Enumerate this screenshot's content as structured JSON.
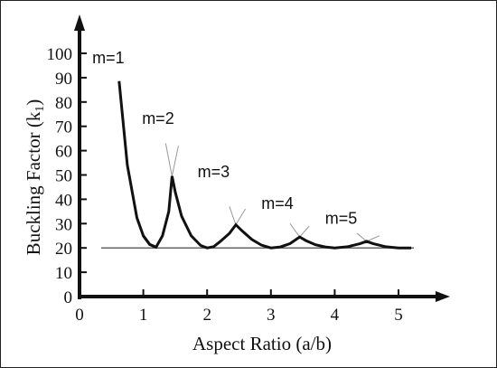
{
  "chart_data": {
    "type": "line",
    "title": "",
    "xlabel": "Aspect Ratio (a/b)",
    "ylabel": "Buckling Factor (k",
    "ylabel_sub": "1",
    "ylabel_close": ")",
    "xlim": [
      0,
      5.5
    ],
    "ylim": [
      0,
      100
    ],
    "x_ticks": [
      0,
      1,
      2,
      3,
      4,
      5
    ],
    "y_ticks": [
      0,
      10,
      20,
      30,
      40,
      50,
      60,
      70,
      80,
      90,
      100
    ],
    "grid": false,
    "reference_line": {
      "y": 20
    },
    "modes": [
      {
        "m": 1,
        "label": "m=1"
      },
      {
        "m": 2,
        "label": "m=2"
      },
      {
        "m": 3,
        "label": "m=3"
      },
      {
        "m": 4,
        "label": "m=4"
      },
      {
        "m": 5,
        "label": "m=5"
      }
    ],
    "envelope": [
      [
        0.62,
        88.6
      ],
      [
        0.75,
        54.1
      ],
      [
        0.9,
        32.4
      ],
      [
        1.0,
        25.0
      ],
      [
        1.1,
        21.4
      ],
      [
        1.2,
        20.3
      ],
      [
        1.3,
        21.1
      ],
      [
        1.41,
        22.5
      ],
      [
        1.5,
        21.1
      ],
      [
        1.6,
        20.1
      ],
      [
        1.8,
        20.0
      ],
      [
        2.0,
        20.2
      ],
      [
        2.2,
        20.8
      ],
      [
        2.45,
        21.8
      ],
      [
        2.6,
        21.0
      ],
      [
        2.8,
        20.2
      ],
      [
        3.0,
        20.0
      ],
      [
        3.2,
        20.1
      ],
      [
        3.46,
        20.8
      ],
      [
        3.7,
        20.2
      ],
      [
        4.0,
        20.0
      ],
      [
        4.2,
        20.0
      ],
      [
        4.47,
        20.4
      ],
      [
        4.7,
        20.1
      ],
      [
        5.0,
        20.0
      ],
      [
        5.2,
        20.0
      ]
    ],
    "peaks": [
      [
        1.0,
        25.0
      ],
      [
        1.1,
        21.4
      ],
      [
        1.2,
        20.3
      ],
      [
        1.3,
        25.0
      ],
      [
        1.4,
        35.0
      ],
      [
        1.45,
        49.5
      ],
      [
        1.5,
        43.0
      ],
      [
        1.6,
        33.0
      ],
      [
        1.75,
        25.0
      ],
      [
        1.9,
        21.0
      ],
      [
        2.0,
        20.0
      ],
      [
        2.1,
        20.5
      ],
      [
        2.2,
        22.5
      ],
      [
        2.35,
        26.0
      ],
      [
        2.45,
        29.5
      ],
      [
        2.55,
        27.0
      ],
      [
        2.7,
        23.5
      ],
      [
        2.85,
        21.2
      ],
      [
        3.0,
        20.0
      ],
      [
        3.15,
        20.4
      ],
      [
        3.3,
        21.8
      ],
      [
        3.45,
        24.5
      ],
      [
        3.55,
        23.0
      ],
      [
        3.7,
        21.3
      ],
      [
        3.85,
        20.4
      ],
      [
        4.0,
        20.0
      ],
      [
        4.2,
        20.5
      ],
      [
        4.4,
        21.8
      ],
      [
        4.5,
        22.7
      ],
      [
        4.6,
        21.8
      ],
      [
        4.8,
        20.5
      ],
      [
        5.0,
        20.0
      ],
      [
        5.2,
        20.0
      ]
    ]
  }
}
